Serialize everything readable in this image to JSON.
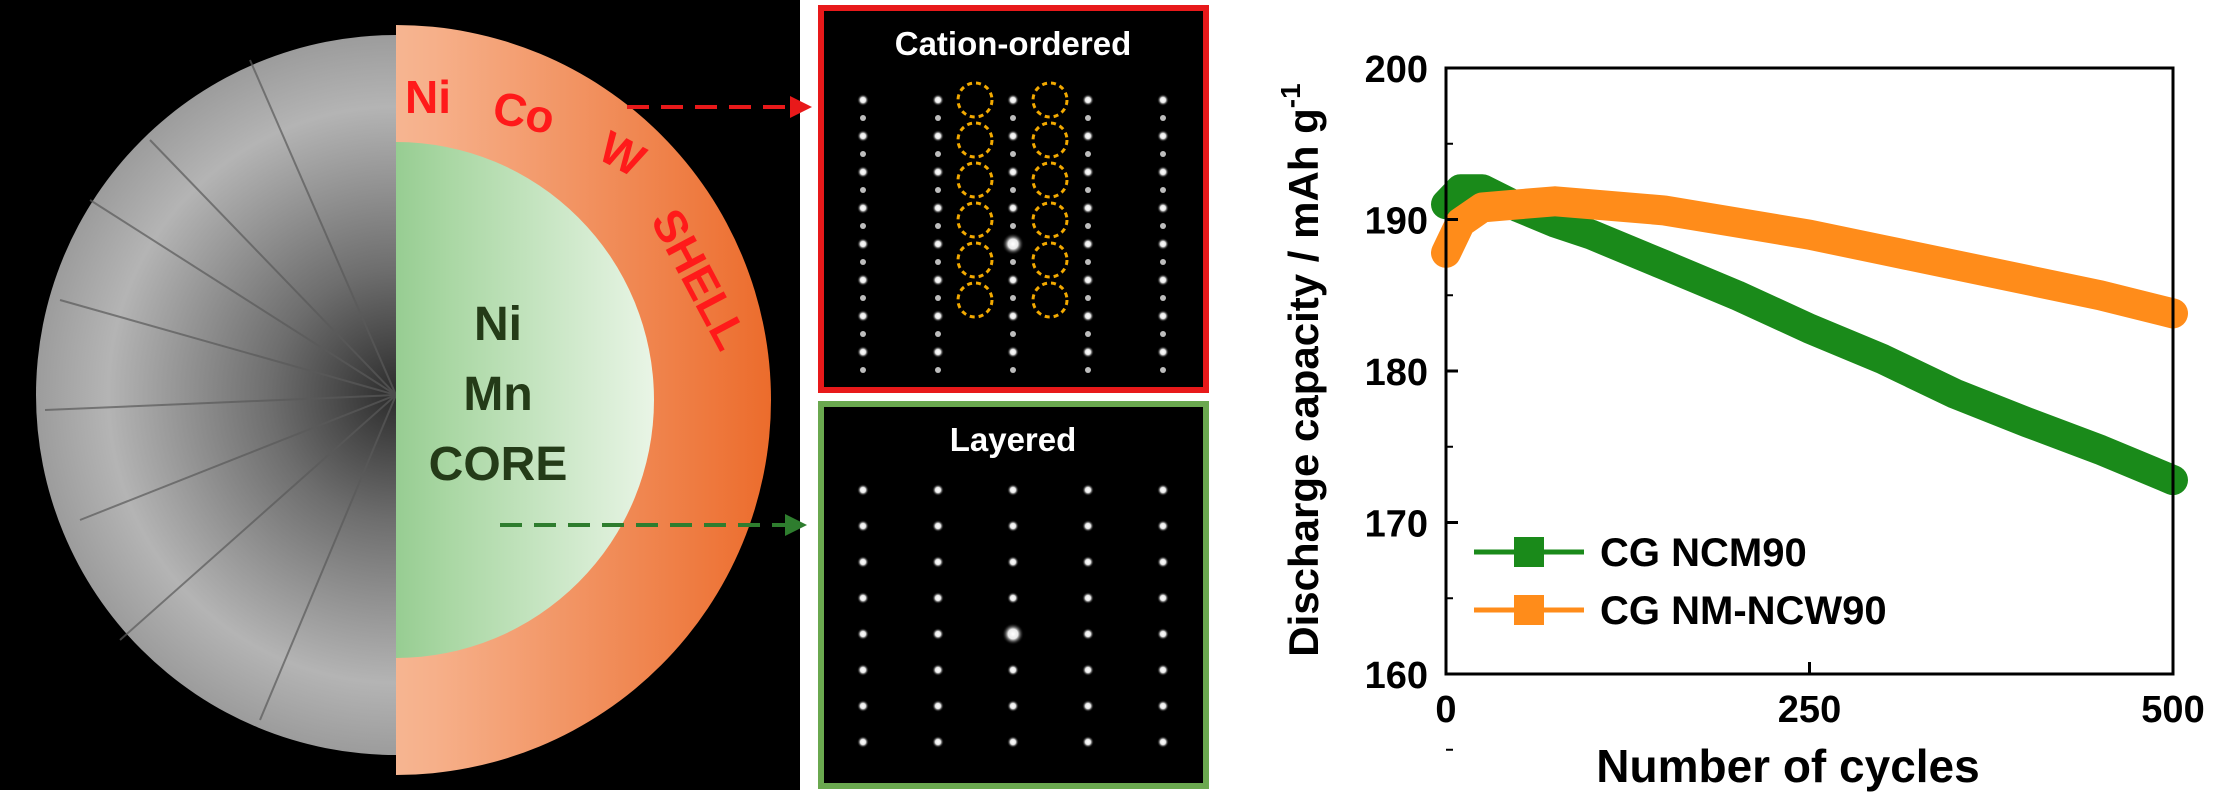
{
  "schematic": {
    "shell_words": [
      "Ni",
      "Co",
      "W",
      "SHELL"
    ],
    "core_words": [
      "Ni",
      "Mn",
      "CORE"
    ],
    "colors": {
      "shell_text": "#ff1a1a",
      "core_text": "#243b18",
      "shell_fill": "#f07a3c",
      "core_fill": "#4da34d"
    }
  },
  "panels": {
    "top": {
      "label": "Cation-ordered",
      "border": "#e8191a"
    },
    "bottom": {
      "label": "Layered",
      "border": "#6aa84f"
    }
  },
  "chart_data": {
    "type": "line",
    "x": [
      0,
      10,
      25,
      50,
      75,
      100,
      150,
      200,
      250,
      300,
      350,
      400,
      450,
      500
    ],
    "series": [
      {
        "name": "CG NCM90",
        "color": "#1a8a1a",
        "values": [
          191.0,
          192.0,
          192.0,
          190.8,
          189.8,
          189.0,
          187.0,
          185.0,
          182.8,
          180.8,
          178.5,
          176.6,
          174.8,
          172.8
        ]
      },
      {
        "name": "CG NM-NCW90",
        "color": "#ff8c1a",
        "values": [
          187.8,
          189.8,
          190.8,
          191.0,
          191.2,
          191.0,
          190.6,
          189.8,
          189.0,
          188.0,
          187.0,
          186.0,
          185.0,
          183.8
        ]
      }
    ],
    "xlabel": "Number of cycles",
    "ylabel": "Discharge capacity / mAh g",
    "ylabel_sup": "-1",
    "xlim": [
      0,
      500
    ],
    "ylim": [
      160,
      200
    ],
    "xticks": [
      "0",
      "250",
      "500"
    ],
    "yticks": [
      "200",
      "190",
      "180",
      "170",
      "160"
    ],
    "grid": false,
    "legend_position": "bottom-left"
  }
}
